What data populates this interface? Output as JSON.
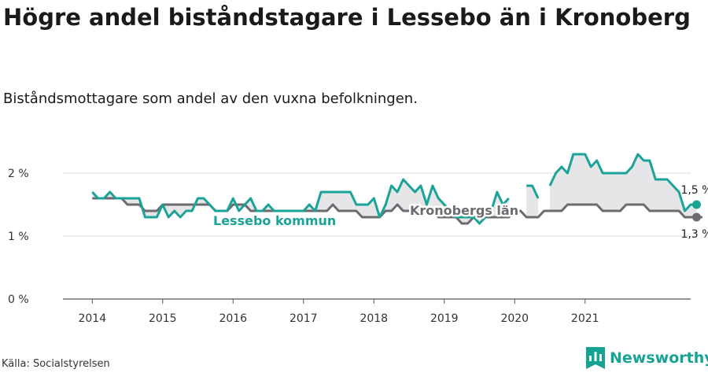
{
  "title": "Högre andel biståndstagare i Lessebo än i Kronoberg",
  "subtitle": "Biståndsmottagare som andel av den vuxna befolkningen.",
  "source": "Källa: Socialstyrelsen",
  "brand": "Newsworthy",
  "colors": {
    "lessebo": "#1aa396",
    "lan": "#6e6b70",
    "fill": "#e6e6e8",
    "grid": "#dddddd",
    "axis": "#555555"
  },
  "chart_data": {
    "type": "line",
    "title": "Högre andel biståndstagare i Lessebo än i Kronoberg",
    "subtitle": "Biståndsmottagare som andel av den vuxna befolkningen.",
    "xlabel": "",
    "ylabel": "",
    "x_start": "2014-01",
    "x_step": "month",
    "xlim": [
      "2013-08",
      "2022-07"
    ],
    "ylim": [
      0,
      2.5
    ],
    "yticks": [
      0,
      1,
      2
    ],
    "ytick_labels": [
      "0 %",
      "1 %",
      "2 %"
    ],
    "xticks": [
      "2014",
      "2015",
      "2016",
      "2017",
      "2018",
      "2019",
      "2020",
      "2021"
    ],
    "grid": true,
    "series": [
      {
        "name": "Lessebo kommun",
        "color": "#1aa396",
        "end_label": "1,5 %",
        "values": [
          1.7,
          1.6,
          1.6,
          1.7,
          1.6,
          1.6,
          1.6,
          1.6,
          1.6,
          1.3,
          1.3,
          1.3,
          1.5,
          1.3,
          1.4,
          1.3,
          1.4,
          1.4,
          1.6,
          1.6,
          1.5,
          1.4,
          1.4,
          1.4,
          1.6,
          1.4,
          1.5,
          1.6,
          1.4,
          1.4,
          1.5,
          1.4,
          1.4,
          1.4,
          1.4,
          1.4,
          1.4,
          1.5,
          1.4,
          1.7,
          1.7,
          1.7,
          1.7,
          1.7,
          1.7,
          1.5,
          1.5,
          1.5,
          1.6,
          1.3,
          1.5,
          1.8,
          1.7,
          1.9,
          1.8,
          1.7,
          1.8,
          1.5,
          1.8,
          1.6,
          1.5,
          1.4,
          1.3,
          1.3,
          1.3,
          1.3,
          1.2,
          1.3,
          1.4,
          1.7,
          1.5,
          1.6,
          null,
          null,
          1.8,
          1.8,
          1.6,
          null,
          1.8,
          2.0,
          2.1,
          2.0,
          2.3,
          2.3,
          2.3,
          2.1,
          2.2,
          2.0,
          2.0,
          2.0,
          2.0,
          2.0,
          2.1,
          2.3,
          2.2,
          2.2,
          1.9,
          1.9,
          1.9,
          1.8,
          1.7,
          1.4,
          1.5,
          1.5
        ]
      },
      {
        "name": "Kronobergs län",
        "color": "#6e6b70",
        "end_label": "1,3 %",
        "values": [
          1.6,
          1.6,
          1.6,
          1.6,
          1.6,
          1.6,
          1.5,
          1.5,
          1.5,
          1.4,
          1.4,
          1.4,
          1.5,
          1.5,
          1.5,
          1.5,
          1.5,
          1.5,
          1.5,
          1.5,
          1.5,
          1.4,
          1.4,
          1.4,
          1.5,
          1.5,
          1.5,
          1.4,
          1.4,
          1.4,
          1.4,
          1.4,
          1.4,
          1.4,
          1.4,
          1.4,
          1.4,
          1.4,
          1.4,
          1.4,
          1.4,
          1.5,
          1.4,
          1.4,
          1.4,
          1.4,
          1.3,
          1.3,
          1.3,
          1.3,
          1.4,
          1.4,
          1.5,
          1.4,
          1.4,
          1.4,
          1.4,
          1.4,
          1.4,
          1.3,
          1.3,
          1.3,
          1.3,
          1.2,
          1.2,
          1.3,
          1.3,
          1.3,
          1.3,
          1.3,
          1.3,
          1.3,
          1.4,
          1.4,
          1.3,
          1.3,
          1.3,
          1.4,
          1.4,
          1.4,
          1.4,
          1.5,
          1.5,
          1.5,
          1.5,
          1.5,
          1.5,
          1.4,
          1.4,
          1.4,
          1.4,
          1.5,
          1.5,
          1.5,
          1.5,
          1.4,
          1.4,
          1.4,
          1.4,
          1.4,
          1.4,
          1.3,
          1.3,
          1.3,
          1.3
        ]
      }
    ]
  }
}
